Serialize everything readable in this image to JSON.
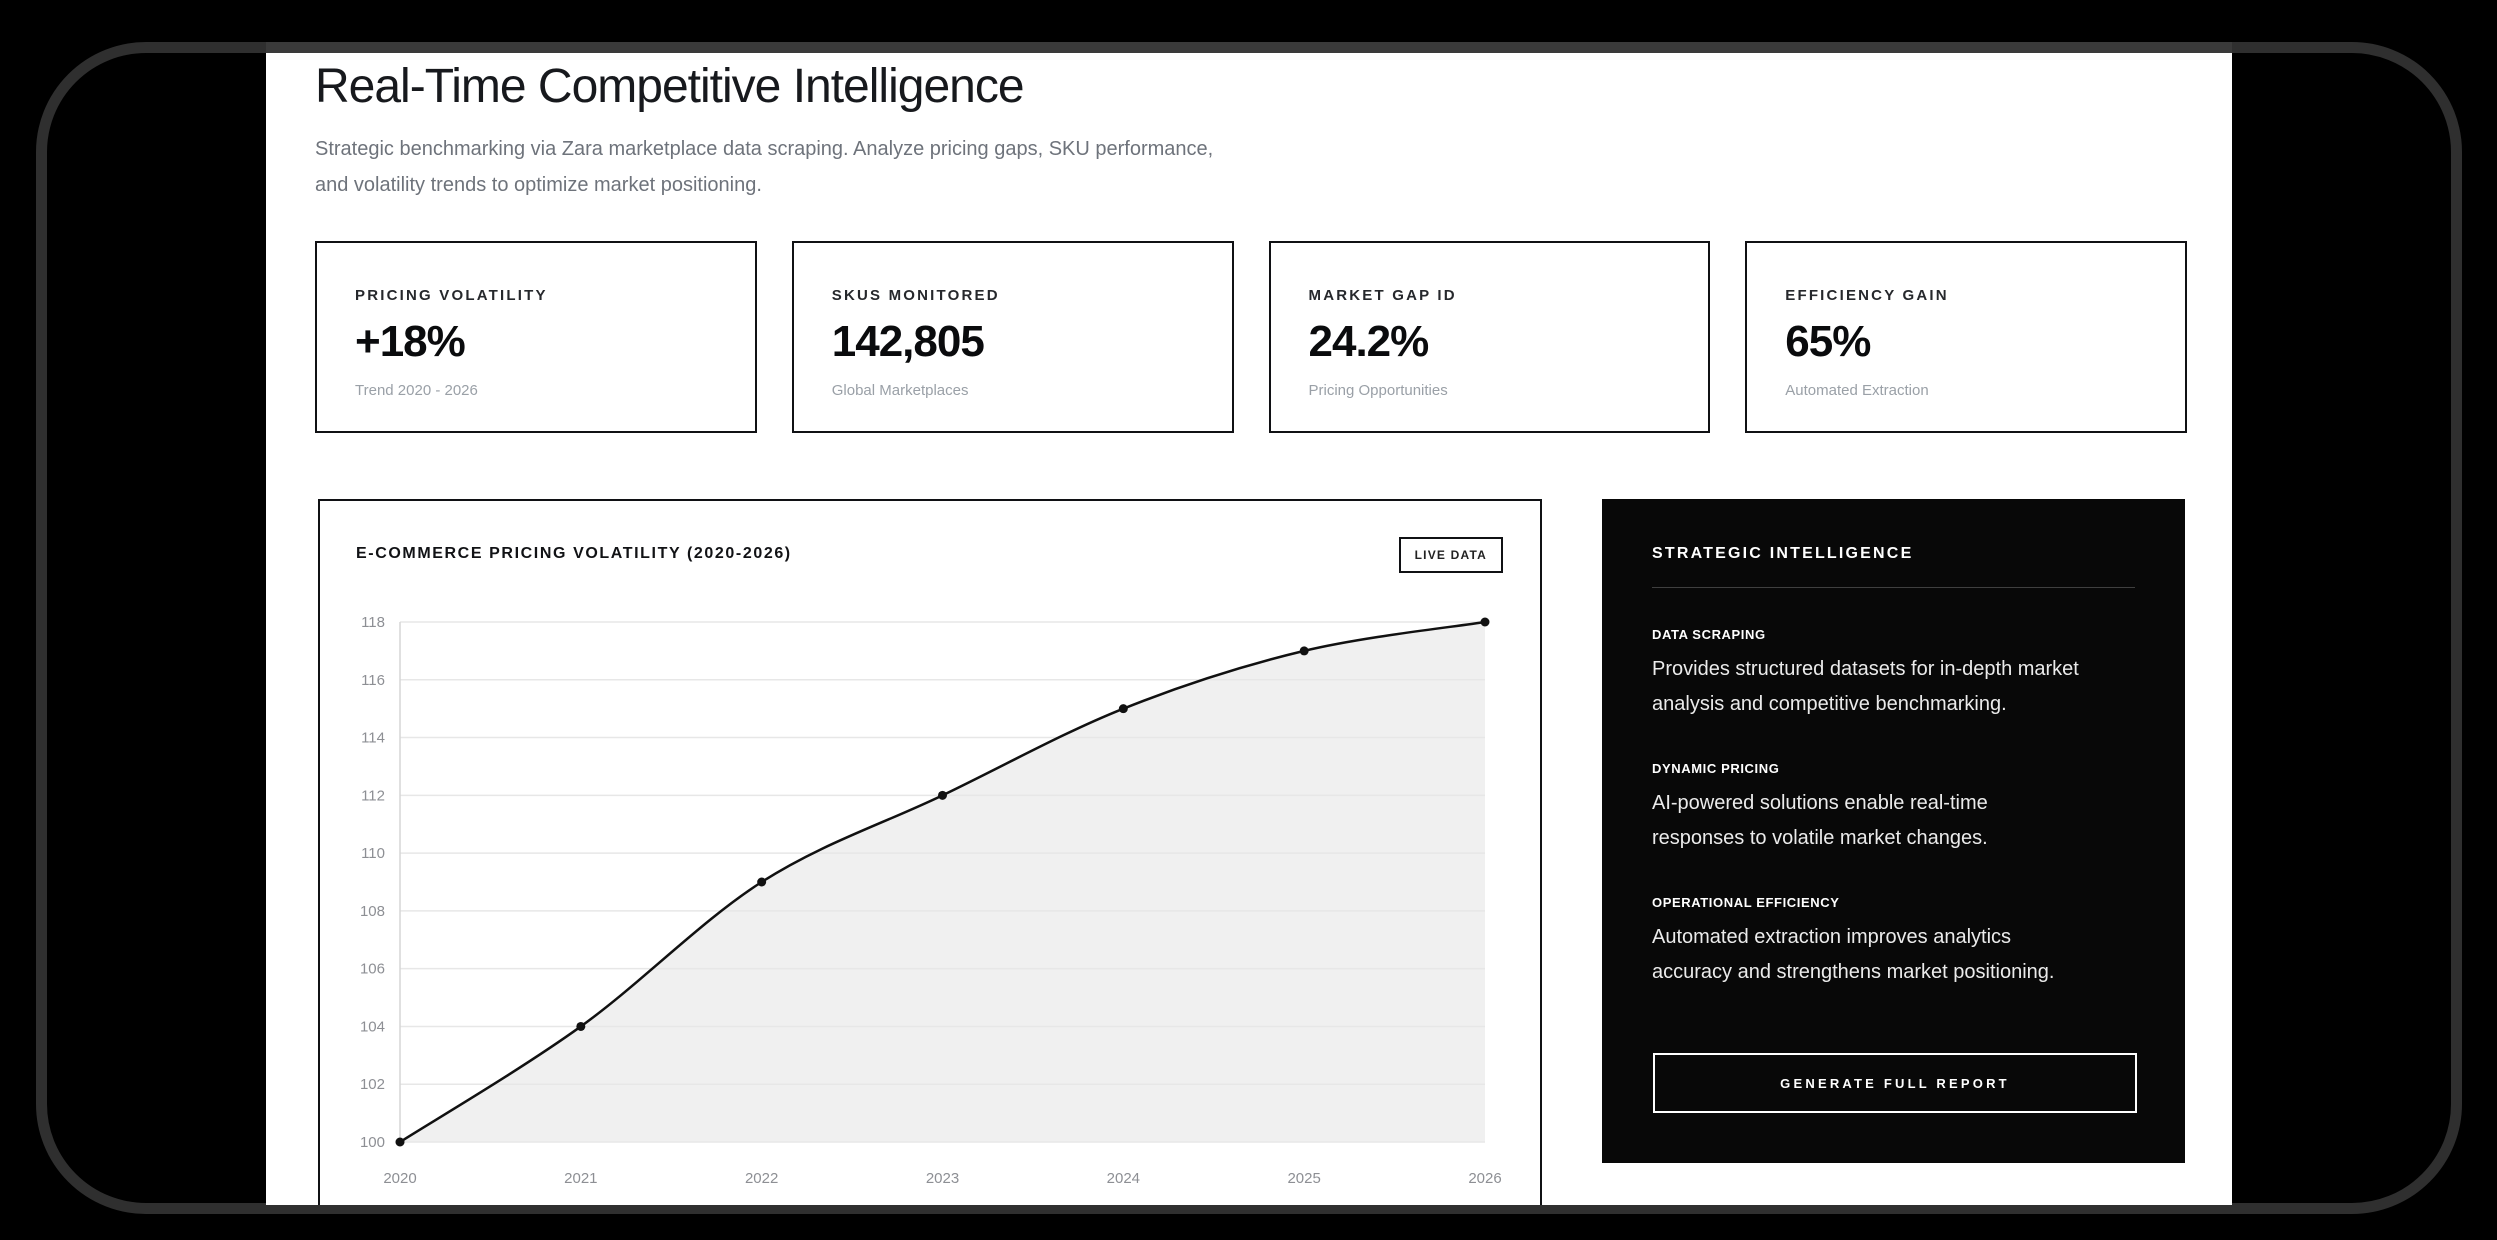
{
  "page": {
    "title": "Real-Time Competitive Intelligence",
    "subtitle_lines": [
      "Strategic benchmarking via Zara marketplace data scraping. Analyze pricing gaps, SKU performance,",
      "and volatility trends to optimize market positioning."
    ]
  },
  "stats": [
    {
      "label": "PRICING VOLATILITY",
      "value": "+18%",
      "caption": "Trend 2020 - 2026"
    },
    {
      "label": "SKUS MONITORED",
      "value": "142,805",
      "caption": "Global Marketplaces"
    },
    {
      "label": "MARKET GAP ID",
      "value": "24.2%",
      "caption": "Pricing Opportunities"
    },
    {
      "label": "EFFICIENCY GAIN",
      "value": "65%",
      "caption": "Automated Extraction"
    }
  ],
  "chart_panel": {
    "title": "E-COMMERCE PRICING VOLATILITY (2020-2026)",
    "badge": "LIVE DATA"
  },
  "chart_data": {
    "type": "area",
    "title": "E-COMMERCE PRICING VOLATILITY (2020-2026)",
    "categories": [
      "2020",
      "2021",
      "2022",
      "2023",
      "2024",
      "2025",
      "2026"
    ],
    "values": [
      100,
      104,
      109,
      112,
      115,
      117,
      118
    ],
    "xlabel": "",
    "ylabel": "",
    "ylim": [
      100,
      118
    ],
    "ytick_step": 2,
    "grid": true,
    "legend": "none",
    "line_color": "#111111",
    "fill_color": "#f0f0f0",
    "grid_color": "#e7e7e7",
    "axis_color": "#d6d6d6"
  },
  "intel_panel": {
    "title": "STRATEGIC INTELLIGENCE",
    "sections": [
      {
        "label": "DATA SCRAPING",
        "lines": [
          "Provides structured datasets for in-depth market",
          "analysis and competitive benchmarking."
        ]
      },
      {
        "label": "DYNAMIC PRICING",
        "lines": [
          "AI-powered solutions enable real-time",
          "responses to volatile market changes."
        ]
      },
      {
        "label": "OPERATIONAL EFFICIENCY",
        "lines": [
          "Automated extraction improves analytics",
          "accuracy and strengthens market positioning."
        ]
      }
    ],
    "button_label": "GENERATE FULL REPORT"
  },
  "colors": {
    "backdrop": "#000000",
    "bezel_outline": "#2f2f2f",
    "page_top_strip": "#3a3a3a",
    "card_border": "#101114",
    "muted_text": "#6e737b",
    "caption_text": "#9aa0a7",
    "intel_bg": "#080808"
  }
}
